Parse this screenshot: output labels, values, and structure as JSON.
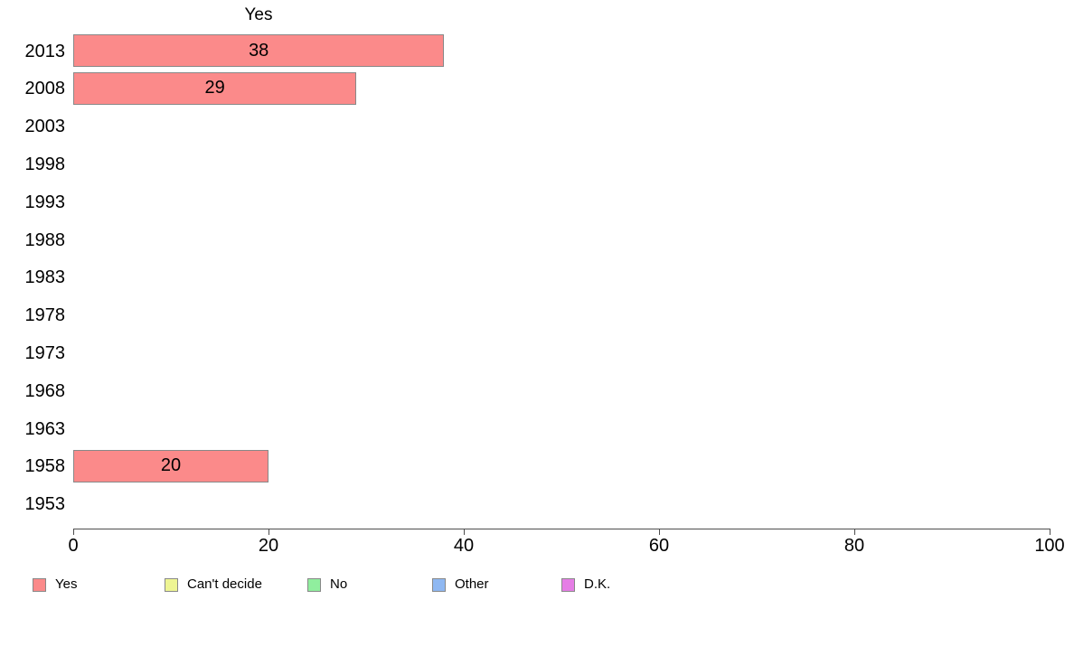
{
  "chart_data": {
    "type": "bar",
    "orientation": "horizontal",
    "title": "Yes",
    "categories": [
      "2013",
      "2008",
      "2003",
      "1998",
      "1993",
      "1988",
      "1983",
      "1978",
      "1973",
      "1968",
      "1963",
      "1958",
      "1953"
    ],
    "values": [
      38,
      29,
      null,
      null,
      null,
      null,
      null,
      null,
      null,
      null,
      null,
      20,
      null
    ],
    "bar_labels": [
      "38",
      "29",
      "",
      "",
      "",
      "",
      "",
      "",
      "",
      "",
      "",
      "20",
      ""
    ],
    "xlabel": "",
    "ylabel": "",
    "xlim": [
      0,
      100
    ],
    "x_ticks": [
      0,
      20,
      40,
      60,
      80,
      100
    ],
    "grid": false,
    "bar_color": "#FB8A8A",
    "bar_border_color": "#888888",
    "legend": {
      "position": "bottom",
      "entries": [
        {
          "label": "Yes",
          "color": "#FB8A8A"
        },
        {
          "label": "Can't decide",
          "color": "#EEF593"
        },
        {
          "label": "No",
          "color": "#90EE9E"
        },
        {
          "label": "Other",
          "color": "#8FB8F2"
        },
        {
          "label": "D.K.",
          "color": "#E57DE5"
        }
      ]
    }
  }
}
